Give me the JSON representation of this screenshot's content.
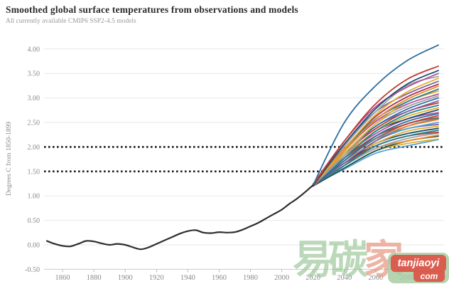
{
  "header": {
    "title": "Smoothed global surface temperatures from observations and models",
    "subtitle": "All currently available CMIP6 SSP2-4.5 models"
  },
  "watermark": {
    "char1": "易",
    "char2": "碳",
    "char3": "家",
    "badge_line1": "tanjiaoyi",
    "badge_line2": "com",
    "green": "#8dc08b",
    "red": "#dd5448"
  },
  "chart_data": {
    "type": "line",
    "title": "Smoothed global surface temperatures from observations and models",
    "subtitle": "All currently available CMIP6 SSP2-4.5 models",
    "xlabel": "",
    "ylabel": "Degrees C from 1850-1899",
    "xlim": [
      1850,
      2100
    ],
    "ylim": [
      -0.5,
      4.15
    ],
    "grid": true,
    "legend": "none",
    "yticks": [
      4.0,
      3.5,
      3.0,
      2.5,
      2.0,
      1.5,
      1.0,
      0.5,
      0.0,
      -0.5
    ],
    "xticks": [
      1860,
      1880,
      1900,
      1920,
      1940,
      1960,
      1980,
      2000,
      2020,
      2040,
      2060,
      2080,
      2100
    ],
    "threshold_lines": [
      1.5,
      2.0
    ],
    "threshold_color": "#1f1f1f",
    "observed": {
      "name": "observations",
      "color": "#2e2e2e",
      "x_start": 1850,
      "x_step": 5,
      "values": [
        0.08,
        0.02,
        -0.02,
        -0.03,
        0.02,
        0.08,
        0.07,
        0.03,
        0.0,
        0.02,
        0.0,
        -0.05,
        -0.09,
        -0.05,
        0.02,
        0.09,
        0.16,
        0.23,
        0.28,
        0.3,
        0.25,
        0.24,
        0.26,
        0.25,
        0.26,
        0.31,
        0.38,
        0.45,
        0.54,
        0.63,
        0.72,
        0.84,
        0.95,
        1.08,
        1.22
      ]
    },
    "models": {
      "name": "CMIP6 SSP2-4.5 models",
      "x": [
        2020,
        2040,
        2060,
        2080,
        2100
      ],
      "series": [
        {
          "color": "#2e6e9e",
          "values": [
            1.22,
            2.5,
            3.25,
            3.76,
            4.08
          ]
        },
        {
          "color": "#c0392e",
          "values": [
            1.22,
            2.12,
            2.88,
            3.38,
            3.65
          ]
        },
        {
          "color": "#1d4e70",
          "values": [
            1.2,
            2.06,
            2.78,
            3.28,
            3.56
          ]
        },
        {
          "color": "#b0509e",
          "values": [
            1.24,
            2.12,
            2.82,
            3.22,
            3.5
          ]
        },
        {
          "color": "#a0a0a0",
          "values": [
            1.22,
            2.02,
            2.72,
            3.25,
            3.44
          ]
        },
        {
          "color": "#dfaf2c",
          "values": [
            1.2,
            1.96,
            2.66,
            3.12,
            3.4
          ]
        },
        {
          "color": "#7e5fa5",
          "values": [
            1.22,
            2.06,
            2.72,
            3.08,
            3.34
          ]
        },
        {
          "color": "#a5314d",
          "values": [
            1.22,
            1.97,
            2.62,
            3.02,
            3.28
          ]
        },
        {
          "color": "#e98a2d",
          "values": [
            1.2,
            1.92,
            2.56,
            2.97,
            3.24
          ]
        },
        {
          "color": "#22808d",
          "values": [
            1.22,
            1.96,
            2.57,
            2.92,
            3.18
          ]
        },
        {
          "color": "#dfaf2c",
          "values": [
            1.24,
            1.87,
            2.47,
            2.92,
            3.14
          ]
        },
        {
          "color": "#b0509e",
          "values": [
            1.2,
            1.92,
            2.52,
            2.87,
            3.08
          ]
        },
        {
          "color": "#a0a0a0",
          "values": [
            1.22,
            1.82,
            2.47,
            2.82,
            3.04
          ]
        },
        {
          "color": "#2e6e9e",
          "values": [
            1.22,
            1.87,
            2.42,
            2.77,
            3.0
          ]
        },
        {
          "color": "#7e5fa5",
          "values": [
            1.2,
            1.82,
            2.42,
            2.72,
            2.94
          ]
        },
        {
          "color": "#c0392e",
          "values": [
            1.24,
            1.87,
            2.37,
            2.72,
            2.9
          ]
        },
        {
          "color": "#22808d",
          "values": [
            1.22,
            1.77,
            2.32,
            2.67,
            2.85
          ]
        },
        {
          "color": "#dfaf2c",
          "values": [
            1.2,
            1.82,
            2.32,
            2.62,
            2.8
          ]
        },
        {
          "color": "#1d4e70",
          "values": [
            1.22,
            1.77,
            2.32,
            2.57,
            2.76
          ]
        },
        {
          "color": "#b0509e",
          "values": [
            1.22,
            1.82,
            2.27,
            2.57,
            2.7
          ]
        },
        {
          "color": "#2e6e9e",
          "values": [
            1.2,
            1.72,
            2.22,
            2.52,
            2.68
          ]
        },
        {
          "color": "#c0392e",
          "values": [
            1.22,
            1.77,
            2.22,
            2.47,
            2.64
          ]
        },
        {
          "color": "#6f6f6f",
          "values": [
            1.22,
            1.72,
            2.17,
            2.47,
            2.6
          ]
        },
        {
          "color": "#e98a2d",
          "values": [
            1.2,
            1.72,
            2.17,
            2.42,
            2.56
          ]
        },
        {
          "color": "#53a2d6",
          "values": [
            1.24,
            1.77,
            2.17,
            2.37,
            2.5
          ]
        },
        {
          "color": "#7e5fa5",
          "values": [
            1.22,
            1.67,
            2.12,
            2.37,
            2.46
          ]
        },
        {
          "color": "#dfaf2c",
          "values": [
            1.2,
            1.72,
            2.07,
            2.32,
            2.42
          ]
        },
        {
          "color": "#1d4e70",
          "values": [
            1.22,
            1.67,
            2.07,
            2.27,
            2.38
          ]
        },
        {
          "color": "#22808d",
          "values": [
            1.22,
            1.62,
            2.02,
            2.22,
            2.34
          ]
        },
        {
          "color": "#c0392e",
          "values": [
            1.2,
            1.67,
            2.02,
            2.22,
            2.3
          ]
        },
        {
          "color": "#a0a0a0",
          "values": [
            1.22,
            1.62,
            1.97,
            2.17,
            2.28
          ]
        },
        {
          "color": "#e98a2d",
          "values": [
            1.22,
            1.62,
            1.97,
            2.12,
            2.24
          ]
        },
        {
          "color": "#16555e",
          "values": [
            1.2,
            1.57,
            1.92,
            2.12,
            2.22
          ]
        },
        {
          "color": "#dfaf2c",
          "values": [
            1.22,
            1.57,
            1.92,
            2.07,
            2.16
          ]
        },
        {
          "color": "#53a2d6",
          "values": [
            1.22,
            1.55,
            1.87,
            2.02,
            2.15
          ]
        },
        {
          "color": "#6f6f6f",
          "values": [
            1.2,
            1.62,
            2.12,
            2.42,
            2.58
          ]
        }
      ]
    }
  }
}
